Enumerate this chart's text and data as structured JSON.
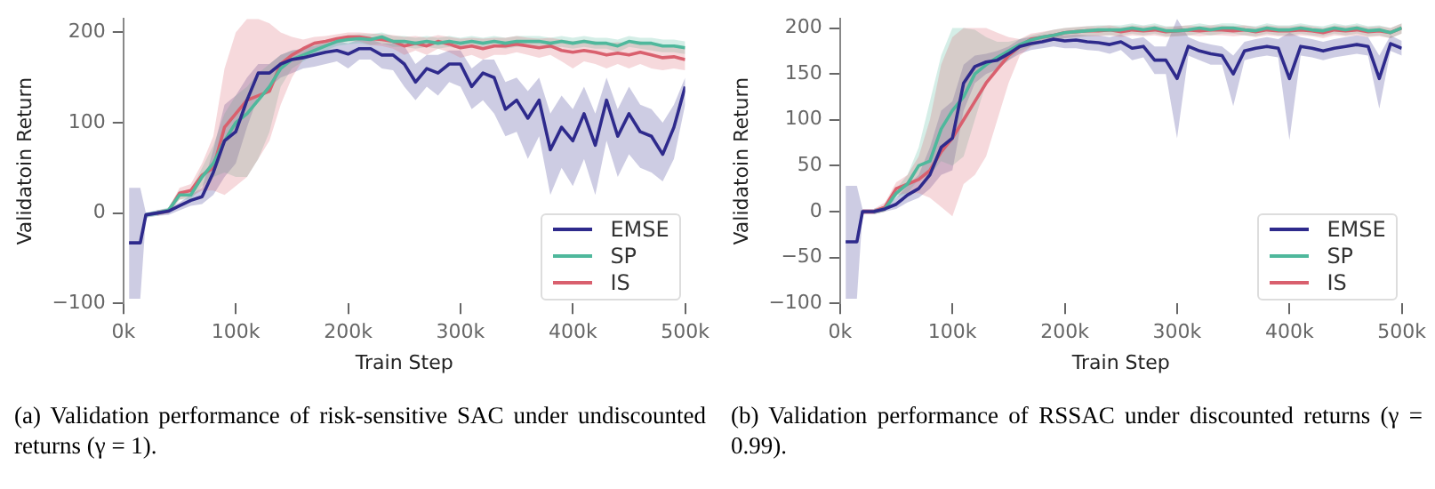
{
  "chart_data": [
    {
      "type": "line",
      "xlabel": "Train Step",
      "ylabel": "Validatoin Return",
      "legend": "bottom right",
      "annotations": [
        "(a) Validation performance of risk-sensitive SAC under undiscounted returns (γ = 1)."
      ],
      "x": [
        5000,
        15000,
        20000,
        30000,
        40000,
        50000,
        60000,
        70000,
        80000,
        90000,
        100000,
        110000,
        120000,
        130000,
        140000,
        150000,
        160000,
        170000,
        180000,
        190000,
        200000,
        210000,
        220000,
        230000,
        240000,
        250000,
        260000,
        270000,
        280000,
        290000,
        300000,
        310000,
        320000,
        330000,
        340000,
        350000,
        360000,
        370000,
        380000,
        390000,
        400000,
        410000,
        420000,
        430000,
        440000,
        450000,
        460000,
        470000,
        480000,
        490000,
        500000
      ],
      "xticks": [
        {
          "value": 0,
          "label": "0k"
        },
        {
          "value": 100000,
          "label": "100k"
        },
        {
          "value": 200000,
          "label": "200k"
        },
        {
          "value": 300000,
          "label": "300k"
        },
        {
          "value": 400000,
          "label": "400k"
        },
        {
          "value": 500000,
          "label": "500k"
        }
      ],
      "xlim": [
        0,
        500000
      ],
      "ylim": [
        -100,
        215
      ],
      "yticks": [
        -100,
        0,
        100,
        200
      ],
      "series": [
        {
          "name": "EMSE",
          "color": "#2e2a8c",
          "values": [
            -33,
            -33,
            -2,
            0,
            2,
            8,
            14,
            18,
            45,
            80,
            90,
            125,
            155,
            155,
            165,
            170,
            172,
            175,
            178,
            180,
            176,
            182,
            182,
            175,
            175,
            165,
            145,
            160,
            155,
            165,
            165,
            140,
            155,
            150,
            115,
            125,
            105,
            125,
            70,
            95,
            80,
            110,
            75,
            125,
            85,
            110,
            90,
            85,
            65,
            95,
            140
          ],
          "lower": [
            -95,
            -95,
            -5,
            -3,
            -2,
            3,
            8,
            10,
            20,
            40,
            55,
            95,
            130,
            140,
            150,
            155,
            160,
            162,
            165,
            168,
            160,
            170,
            170,
            160,
            158,
            140,
            125,
            140,
            130,
            145,
            140,
            115,
            125,
            110,
            85,
            90,
            60,
            85,
            20,
            50,
            30,
            60,
            20,
            80,
            40,
            65,
            50,
            45,
            35,
            60,
            120
          ],
          "upper": [
            28,
            28,
            0,
            3,
            5,
            12,
            20,
            28,
            70,
            120,
            130,
            150,
            165,
            165,
            175,
            180,
            182,
            185,
            188,
            190,
            188,
            192,
            192,
            188,
            188,
            185,
            165,
            175,
            175,
            180,
            180,
            160,
            170,
            170,
            145,
            150,
            135,
            150,
            110,
            130,
            115,
            140,
            110,
            150,
            115,
            140,
            120,
            115,
            100,
            120,
            150
          ]
        },
        {
          "name": "SP",
          "color": "#4fb89c",
          "values": [
            null,
            null,
            -2,
            0,
            3,
            20,
            20,
            40,
            55,
            80,
            100,
            110,
            125,
            140,
            160,
            170,
            175,
            180,
            185,
            190,
            192,
            193,
            192,
            195,
            190,
            190,
            188,
            190,
            188,
            190,
            188,
            190,
            188,
            190,
            188,
            190,
            190,
            190,
            188,
            190,
            188,
            190,
            188,
            188,
            185,
            190,
            188,
            188,
            185,
            185,
            183
          ],
          "lower": [
            null,
            null,
            -5,
            -3,
            0,
            15,
            15,
            30,
            40,
            45,
            40,
            40,
            60,
            90,
            140,
            160,
            168,
            175,
            180,
            185,
            187,
            188,
            186,
            188,
            184,
            184,
            182,
            184,
            182,
            184,
            182,
            184,
            182,
            184,
            182,
            184,
            184,
            184,
            182,
            184,
            182,
            184,
            182,
            182,
            178,
            184,
            182,
            180,
            178,
            178,
            176
          ],
          "upper": [
            null,
            null,
            0,
            3,
            6,
            25,
            25,
            50,
            75,
            110,
            130,
            140,
            155,
            165,
            175,
            180,
            182,
            186,
            190,
            194,
            197,
            198,
            198,
            200,
            196,
            196,
            194,
            196,
            194,
            196,
            194,
            196,
            194,
            196,
            194,
            196,
            196,
            196,
            194,
            196,
            194,
            196,
            194,
            194,
            192,
            196,
            194,
            194,
            192,
            192,
            190
          ]
        },
        {
          "name": "IS",
          "color": "#d9606e",
          "values": [
            null,
            null,
            null,
            0,
            2,
            22,
            25,
            42,
            50,
            95,
            110,
            125,
            130,
            135,
            165,
            175,
            182,
            188,
            190,
            193,
            195,
            195,
            193,
            192,
            190,
            185,
            188,
            185,
            190,
            187,
            183,
            185,
            182,
            185,
            185,
            187,
            185,
            183,
            185,
            180,
            178,
            180,
            178,
            175,
            177,
            175,
            178,
            175,
            172,
            173,
            170
          ],
          "lower": [
            null,
            null,
            null,
            -3,
            0,
            15,
            18,
            25,
            25,
            20,
            30,
            40,
            60,
            80,
            120,
            150,
            170,
            180,
            184,
            188,
            190,
            190,
            186,
            185,
            182,
            175,
            180,
            175,
            182,
            178,
            172,
            175,
            170,
            175,
            175,
            178,
            175,
            172,
            175,
            168,
            160,
            168,
            165,
            160,
            165,
            160,
            165,
            160,
            158,
            160,
            158
          ],
          "upper": [
            null,
            null,
            null,
            3,
            5,
            28,
            32,
            55,
            85,
            160,
            200,
            215,
            215,
            210,
            200,
            195,
            192,
            195,
            196,
            198,
            200,
            200,
            199,
            198,
            197,
            195,
            196,
            194,
            197,
            195,
            193,
            194,
            193,
            194,
            194,
            196,
            194,
            193,
            194,
            192,
            190,
            192,
            190,
            188,
            189,
            188,
            190,
            188,
            185,
            186,
            183
          ]
        }
      ]
    },
    {
      "type": "line",
      "xlabel": "Train Step",
      "ylabel": "Validatoin Return",
      "legend": "bottom right",
      "annotations": [
        "(b) Validation performance of RSSAC under discounted returns (γ = 0.99)."
      ],
      "x": [
        5000,
        15000,
        20000,
        30000,
        40000,
        50000,
        60000,
        70000,
        80000,
        90000,
        100000,
        110000,
        120000,
        130000,
        140000,
        150000,
        160000,
        170000,
        180000,
        190000,
        200000,
        210000,
        220000,
        230000,
        240000,
        250000,
        260000,
        270000,
        280000,
        290000,
        300000,
        310000,
        320000,
        330000,
        340000,
        350000,
        360000,
        370000,
        380000,
        390000,
        400000,
        410000,
        420000,
        430000,
        440000,
        450000,
        460000,
        470000,
        480000,
        490000,
        500000
      ],
      "xticks": [
        {
          "value": 0,
          "label": "0k"
        },
        {
          "value": 100000,
          "label": "100k"
        },
        {
          "value": 200000,
          "label": "200k"
        },
        {
          "value": 300000,
          "label": "300k"
        },
        {
          "value": 400000,
          "label": "400k"
        },
        {
          "value": 500000,
          "label": "500k"
        }
      ],
      "xlim": [
        0,
        500000
      ],
      "ylim": [
        -100,
        210
      ],
      "yticks": [
        -100,
        -50,
        0,
        50,
        100,
        150,
        200
      ],
      "series": [
        {
          "name": "EMSE",
          "color": "#2e2a8c",
          "values": [
            -33,
            -33,
            0,
            0,
            3,
            8,
            18,
            25,
            40,
            70,
            80,
            140,
            158,
            163,
            165,
            172,
            180,
            183,
            185,
            188,
            186,
            187,
            185,
            184,
            182,
            185,
            178,
            180,
            165,
            165,
            145,
            180,
            175,
            172,
            170,
            150,
            175,
            178,
            180,
            178,
            145,
            180,
            178,
            175,
            178,
            180,
            182,
            180,
            145,
            183,
            178
          ],
          "lower": [
            -95,
            -95,
            -3,
            -3,
            0,
            3,
            10,
            15,
            25,
            40,
            45,
            110,
            140,
            150,
            155,
            165,
            172,
            176,
            178,
            180,
            178,
            178,
            176,
            175,
            172,
            176,
            165,
            168,
            150,
            150,
            80,
            170,
            165,
            160,
            160,
            115,
            165,
            168,
            170,
            168,
            78,
            170,
            168,
            165,
            168,
            170,
            172,
            170,
            112,
            175,
            170
          ],
          "upper": [
            28,
            28,
            3,
            3,
            6,
            15,
            28,
            40,
            70,
            110,
            120,
            160,
            170,
            172,
            175,
            180,
            188,
            190,
            192,
            194,
            192,
            193,
            192,
            192,
            190,
            193,
            188,
            190,
            180,
            180,
            210,
            190,
            185,
            182,
            180,
            170,
            185,
            188,
            190,
            188,
            195,
            190,
            188,
            185,
            188,
            190,
            192,
            190,
            170,
            192,
            186
          ]
        },
        {
          "name": "SP",
          "color": "#4fb89c",
          "values": [
            null,
            null,
            null,
            0,
            3,
            20,
            30,
            50,
            55,
            90,
            110,
            125,
            150,
            160,
            168,
            175,
            182,
            187,
            190,
            192,
            195,
            196,
            197,
            198,
            198,
            198,
            200,
            198,
            200,
            197,
            197,
            198,
            200,
            198,
            200,
            200,
            198,
            197,
            200,
            198,
            198,
            200,
            198,
            197,
            200,
            198,
            200,
            197,
            198,
            195,
            200
          ],
          "lower": [
            null,
            null,
            null,
            -3,
            0,
            15,
            20,
            35,
            40,
            55,
            50,
            60,
            100,
            140,
            155,
            165,
            175,
            180,
            184,
            186,
            189,
            190,
            191,
            192,
            192,
            192,
            194,
            192,
            194,
            191,
            191,
            192,
            194,
            192,
            194,
            194,
            192,
            191,
            194,
            192,
            192,
            194,
            192,
            191,
            194,
            192,
            194,
            191,
            192,
            189,
            194
          ],
          "upper": [
            null,
            null,
            null,
            3,
            6,
            25,
            40,
            70,
            120,
            170,
            200,
            200,
            198,
            190,
            185,
            185,
            188,
            192,
            195,
            198,
            200,
            201,
            202,
            203,
            203,
            203,
            205,
            203,
            205,
            202,
            202,
            203,
            205,
            203,
            205,
            205,
            203,
            202,
            205,
            203,
            203,
            205,
            203,
            202,
            205,
            203,
            205,
            202,
            203,
            200,
            205
          ]
        },
        {
          "name": "IS",
          "color": "#d9606e",
          "values": [
            null,
            null,
            0,
            0,
            5,
            25,
            30,
            35,
            45,
            65,
            80,
            100,
            120,
            140,
            155,
            170,
            180,
            188,
            190,
            192,
            195,
            196,
            197,
            197,
            198,
            196,
            198,
            197,
            198,
            196,
            197,
            198,
            197,
            198,
            198,
            197,
            198,
            196,
            198,
            197,
            197,
            198,
            197,
            195,
            198,
            197,
            198,
            196,
            197,
            195,
            200
          ],
          "lower": [
            null,
            null,
            -3,
            -3,
            0,
            18,
            20,
            20,
            15,
            5,
            -5,
            30,
            40,
            60,
            100,
            140,
            170,
            180,
            184,
            186,
            189,
            190,
            191,
            191,
            192,
            190,
            192,
            191,
            192,
            190,
            191,
            192,
            191,
            192,
            192,
            191,
            192,
            190,
            192,
            191,
            191,
            192,
            191,
            189,
            192,
            191,
            192,
            190,
            191,
            189,
            194
          ],
          "upper": [
            null,
            null,
            3,
            3,
            10,
            32,
            40,
            60,
            100,
            160,
            190,
            200,
            200,
            200,
            195,
            190,
            188,
            194,
            196,
            198,
            200,
            201,
            202,
            202,
            203,
            201,
            203,
            202,
            203,
            201,
            202,
            203,
            202,
            203,
            203,
            202,
            203,
            201,
            203,
            202,
            202,
            203,
            202,
            200,
            203,
            202,
            203,
            201,
            202,
            200,
            205
          ]
        }
      ]
    }
  ]
}
